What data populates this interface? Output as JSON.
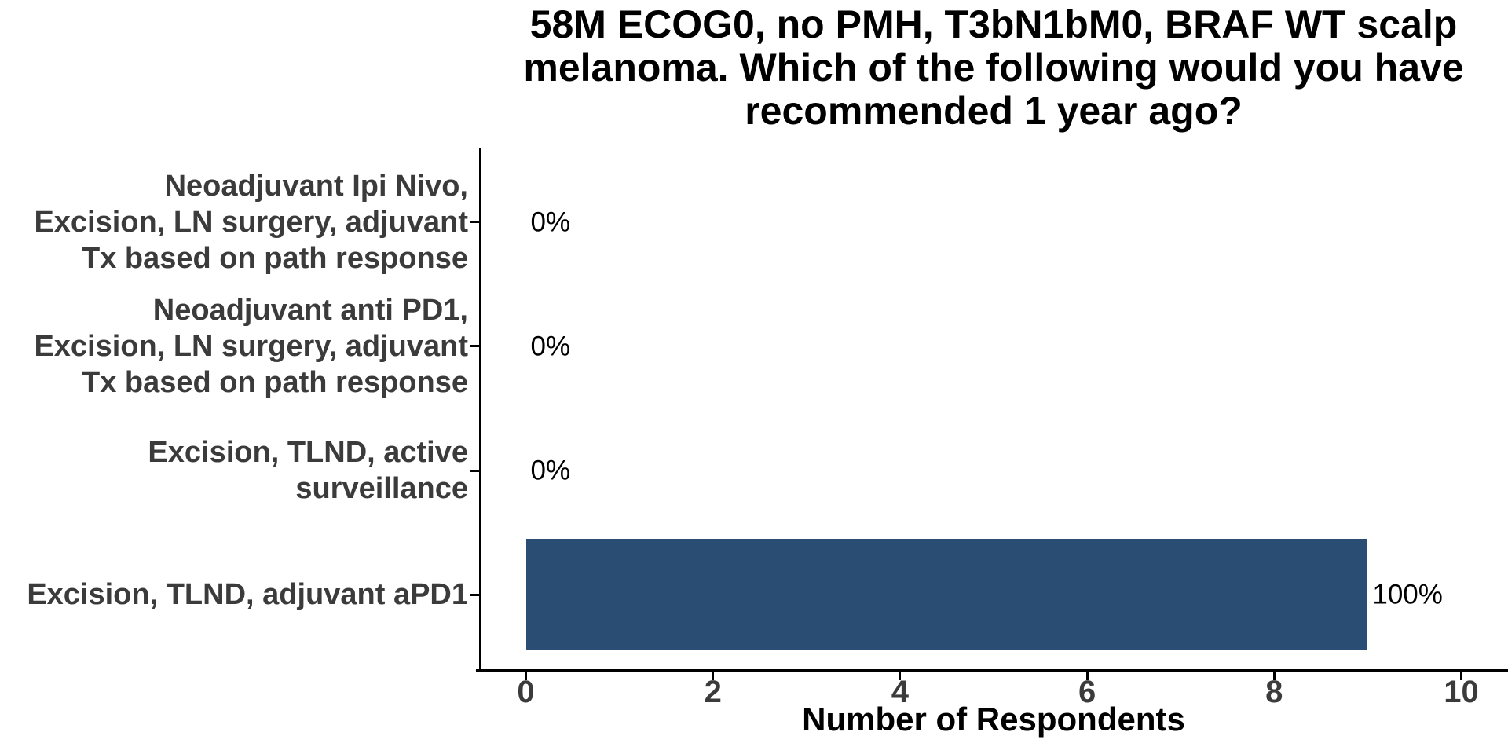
{
  "chart_data": {
    "type": "bar",
    "orientation": "horizontal",
    "title": "58M ECOG0, no PMH, T3bN1bM0, BRAF WT scalp\nmelanoma. Which of the following would you have\nrecommended 1 year ago?",
    "categories": [
      "Neoadjuvant Ipi Nivo,\nExcision, LN surgery, adjuvant\nTx based on path response",
      "Neoadjuvant anti PD1,\nExcision, LN surgery, adjuvant\nTx based on path response",
      "Excision, TLND, active\nsurveillance",
      "Excision, TLND, adjuvant aPD1"
    ],
    "values": [
      0,
      0,
      0,
      9
    ],
    "value_labels": [
      "0%",
      "0%",
      "0%",
      "100%"
    ],
    "xlabel": "Number of Respondents",
    "xlim": [
      0,
      10
    ],
    "xticks": [
      0,
      2,
      4,
      6,
      8,
      10
    ],
    "grid": false,
    "legend": false,
    "colors": {
      "bar": "#2A4E73",
      "axis_text": "#3B3B3B",
      "axis_line": "#000000",
      "title_text": "#000000",
      "background": "#FFFFFF"
    }
  }
}
